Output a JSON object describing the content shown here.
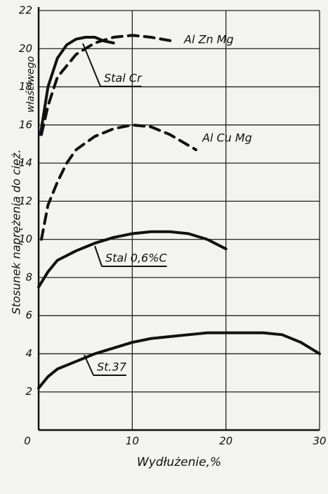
{
  "chart_data": {
    "type": "line",
    "xlabel": "Wydłużenie,%",
    "ylabel": [
      "Stosunek naprężenia do cięż.",
      "właściwego"
    ],
    "xlim": [
      0,
      30
    ],
    "ylim": [
      0,
      22
    ],
    "xticks": [
      0,
      10,
      20,
      30
    ],
    "yticks": [
      2,
      4,
      6,
      8,
      10,
      12,
      14,
      16,
      18,
      20,
      22
    ],
    "grid": true,
    "series": [
      {
        "name": "Al Zn Mg",
        "color": "#111111",
        "dashed": true,
        "x": [
          0.3,
          1,
          2,
          4,
          6,
          8,
          10,
          12,
          14.3
        ],
        "values": [
          15.5,
          17,
          18.5,
          19.7,
          20.3,
          20.6,
          20.7,
          20.6,
          20.4
        ]
      },
      {
        "name": "Stal Cr",
        "color": "#111111",
        "dashed": false,
        "x": [
          0.2,
          1,
          2,
          3,
          4,
          5,
          6,
          7,
          8
        ],
        "values": [
          15.5,
          18,
          19.5,
          20.2,
          20.5,
          20.6,
          20.6,
          20.4,
          20.3
        ]
      },
      {
        "name": "Al Cu Mg",
        "color": "#111111",
        "dashed": true,
        "x": [
          0.3,
          1,
          2,
          3,
          4,
          6,
          8,
          10,
          12,
          14,
          16.8
        ],
        "values": [
          10,
          11.8,
          13,
          14,
          14.7,
          15.4,
          15.8,
          16,
          15.9,
          15.5,
          14.7
        ]
      },
      {
        "name": "Stal 0,6%C",
        "color": "#111111",
        "dashed": false,
        "x": [
          0,
          1,
          2,
          4,
          6,
          8,
          10,
          12,
          14,
          16,
          18,
          20
        ],
        "values": [
          7.5,
          8.3,
          8.9,
          9.4,
          9.8,
          10.1,
          10.3,
          10.4,
          10.4,
          10.3,
          10,
          9.5
        ]
      },
      {
        "name": "St.37",
        "color": "#111111",
        "dashed": false,
        "x": [
          0,
          1,
          2,
          4,
          6,
          8,
          10,
          12,
          14,
          16,
          18,
          20,
          22,
          24,
          26,
          28,
          30
        ],
        "values": [
          2.2,
          2.8,
          3.2,
          3.6,
          4,
          4.3,
          4.6,
          4.8,
          4.9,
          5,
          5.1,
          5.1,
          5.1,
          5.1,
          5,
          4.6,
          4
        ]
      }
    ]
  }
}
